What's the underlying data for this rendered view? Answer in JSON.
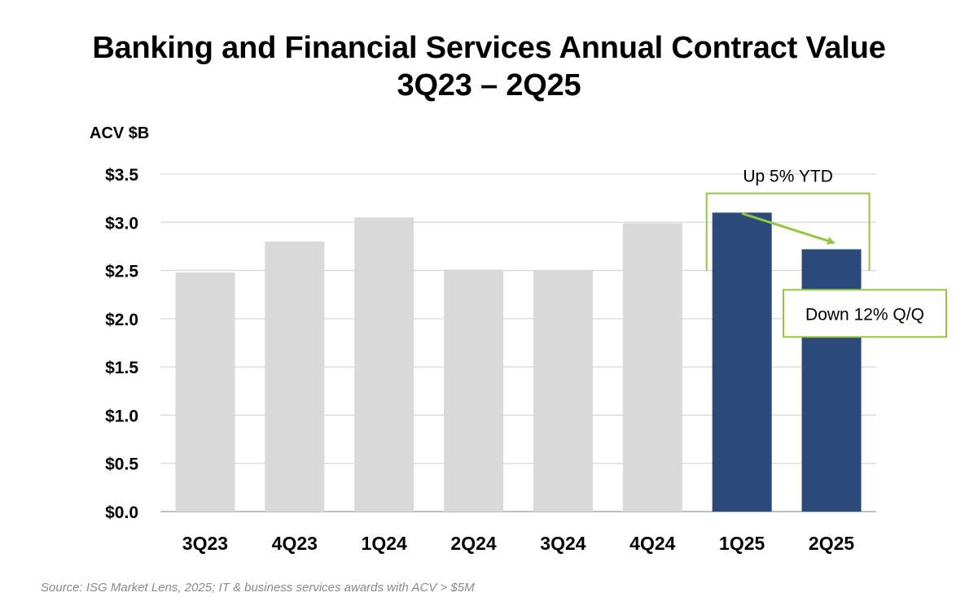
{
  "chart_data": {
    "type": "bar",
    "title_line1": "Banking and Financial Services Annual Contract Value",
    "title_line2": "3Q23 – 2Q25",
    "ylabel": "ACV $B",
    "xlabel": "",
    "categories": [
      "3Q23",
      "4Q23",
      "1Q24",
      "2Q24",
      "3Q24",
      "4Q24",
      "1Q25",
      "2Q25"
    ],
    "values": [
      2.48,
      2.8,
      3.05,
      2.51,
      2.5,
      2.99,
      3.1,
      2.72
    ],
    "ylim": [
      0,
      3.5
    ],
    "yticks": [
      0.0,
      0.5,
      1.0,
      1.5,
      2.0,
      2.5,
      3.0,
      3.5
    ],
    "ytick_labels": [
      "$0.0",
      "$0.5",
      "$1.0",
      "$1.5",
      "$2.0",
      "$2.5",
      "$3.0",
      "$3.5"
    ],
    "grid": true,
    "highlighted": [
      "1Q25",
      "2Q25"
    ],
    "colors": {
      "default_bar": "#d9d9d9",
      "highlight_bar": "#2b4a7a",
      "annotation": "#92c83e",
      "grid": "#d9d9d9"
    },
    "annotations": {
      "ytd": "Up 5% YTD",
      "qq": "Down 12% Q/Q"
    },
    "source": "Source: ISG Market Lens, 2025; IT & business services awards with ACV > $5M"
  }
}
